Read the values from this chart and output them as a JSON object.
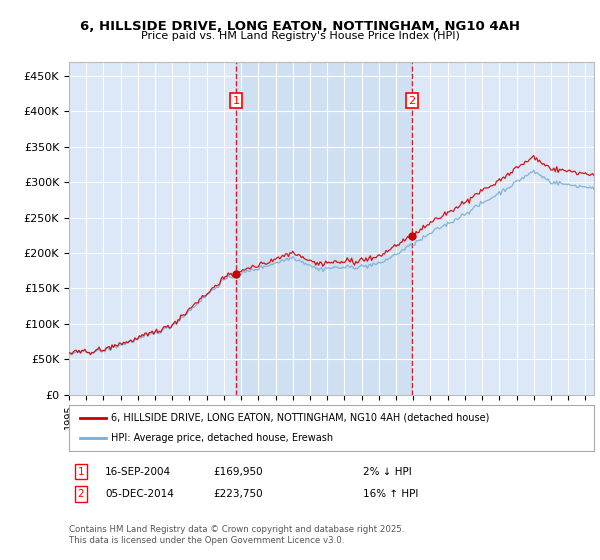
{
  "title": "6, HILLSIDE DRIVE, LONG EATON, NOTTINGHAM, NG10 4AH",
  "subtitle": "Price paid vs. HM Land Registry's House Price Index (HPI)",
  "ylim": [
    0,
    470000
  ],
  "yticks": [
    0,
    50000,
    100000,
    150000,
    200000,
    250000,
    300000,
    350000,
    400000,
    450000
  ],
  "ytick_labels": [
    "£0",
    "£50K",
    "£100K",
    "£150K",
    "£200K",
    "£250K",
    "£300K",
    "£350K",
    "£400K",
    "£450K"
  ],
  "plot_bg_color": "#dce8f8",
  "grid_color": "#ffffff",
  "line1_color": "#cc0000",
  "line2_color": "#7aadd4",
  "line1_label": "6, HILLSIDE DRIVE, LONG EATON, NOTTINGHAM, NG10 4AH (detached house)",
  "line2_label": "HPI: Average price, detached house, Erewash",
  "sale1_year": 2004.71,
  "sale1_value": 169950,
  "sale2_year": 2014.92,
  "sale2_value": 223750,
  "xlim_start": 1995.0,
  "xlim_end": 2025.5,
  "copyright": "Contains HM Land Registry data © Crown copyright and database right 2025.\nThis data is licensed under the Open Government Licence v3.0."
}
